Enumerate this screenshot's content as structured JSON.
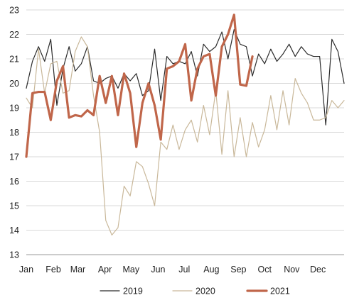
{
  "chart_data": {
    "type": "line",
    "title": "",
    "xlabel": "",
    "ylabel": "",
    "x_tick_labels": [
      "Jan",
      "Feb",
      "Mar",
      "Apr",
      "May",
      "Jun",
      "Jul",
      "Aug",
      "Sep",
      "Oct",
      "Nov",
      "Dec"
    ],
    "y_ticks": [
      13,
      14,
      15,
      16,
      17,
      18,
      19,
      20,
      21,
      22,
      23
    ],
    "ylim": [
      13,
      23
    ],
    "grid": "horizontal",
    "legend_position": "bottom",
    "series": [
      {
        "name": "2019",
        "color": "#2b2b2b",
        "line_width": "thin",
        "values": [
          19.8,
          20.9,
          21.5,
          20.9,
          21.8,
          19.1,
          20.6,
          21.5,
          20.5,
          20.8,
          21.5,
          20.1,
          20.0,
          20.2,
          20.3,
          19.8,
          20.4,
          20.1,
          20.4,
          19.5,
          19.7,
          21.4,
          19.3,
          21.1,
          20.8,
          20.9,
          20.8,
          21.3,
          20.3,
          21.6,
          21.3,
          21.5,
          22.1,
          21.0,
          22.2,
          21.6,
          21.5,
          20.3,
          21.2,
          20.8,
          21.4,
          20.9,
          21.2,
          21.6,
          21.1,
          21.5,
          21.2,
          21.1,
          21.1,
          18.3,
          21.8,
          21.3,
          20.0
        ]
      },
      {
        "name": "2020",
        "color": "#c9b89a",
        "line_width": "thin",
        "values": [
          19.4,
          19.0,
          21.4,
          19.6,
          20.8,
          20.9,
          19.6,
          19.7,
          21.3,
          21.9,
          21.5,
          19.5,
          18.0,
          14.4,
          13.8,
          14.1,
          15.8,
          15.4,
          16.8,
          16.6,
          15.9,
          15.0,
          17.6,
          17.3,
          18.3,
          17.3,
          18.1,
          18.5,
          17.6,
          19.1,
          17.9,
          19.7,
          17.1,
          19.7,
          17.0,
          18.6,
          17.0,
          18.4,
          17.4,
          18.1,
          19.5,
          18.1,
          19.7,
          18.3,
          20.2,
          19.6,
          19.2,
          18.5,
          18.5,
          18.6,
          19.3,
          19.0,
          19.3
        ]
      },
      {
        "name": "2021",
        "color": "#c0664a",
        "line_width": "thick",
        "values": [
          17.0,
          19.6,
          19.65,
          19.65,
          18.5,
          20.1,
          20.7,
          18.6,
          18.7,
          18.65,
          18.9,
          18.7,
          20.3,
          19.2,
          20.3,
          18.7,
          20.4,
          19.6,
          17.4,
          19.2,
          20.0,
          19.1,
          17.7,
          20.6,
          20.7,
          20.9,
          21.6,
          19.3,
          20.6,
          21.1,
          21.2,
          19.5,
          21.5,
          22.0,
          22.8,
          19.95,
          19.9,
          21.1
        ]
      }
    ]
  }
}
